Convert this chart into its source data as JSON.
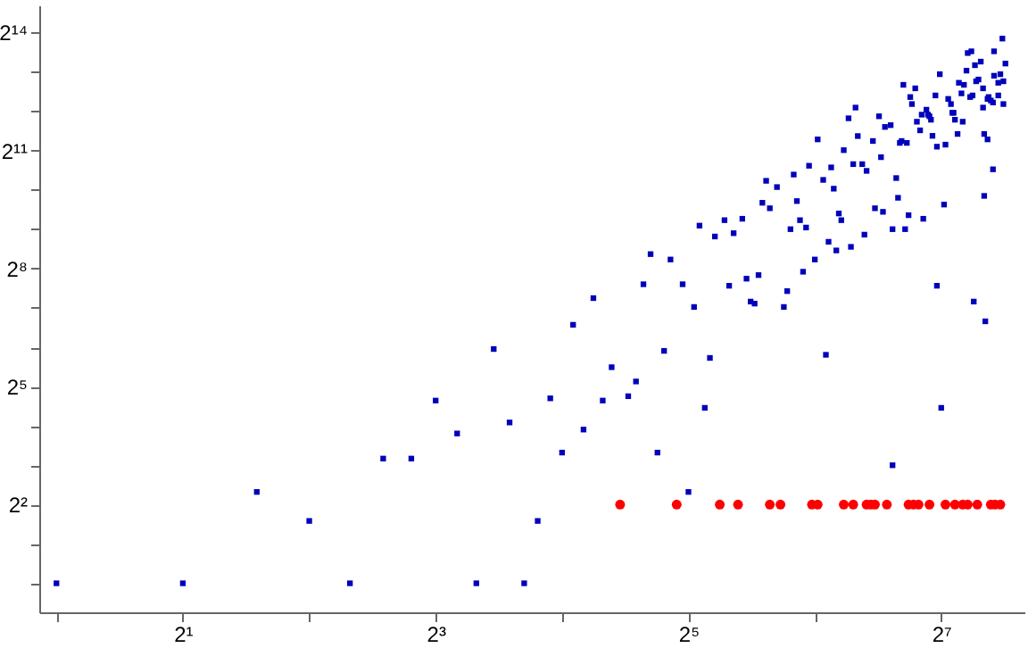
{
  "chart_data": {
    "type": "scatter",
    "log": "xy",
    "grid": false,
    "xlim": [
      0.91,
      202
    ],
    "ylim": [
      0.6,
      26400
    ],
    "xticks": [
      {
        "value": 1,
        "label": null
      },
      {
        "value": 2,
        "label": "2¹"
      },
      {
        "value": 4,
        "label": null
      },
      {
        "value": 8,
        "label": "2³"
      },
      {
        "value": 16,
        "label": null
      },
      {
        "value": 32,
        "label": "2⁵"
      },
      {
        "value": 64,
        "label": null
      },
      {
        "value": 128,
        "label": "2⁷"
      }
    ],
    "yticks": [
      {
        "value": 1,
        "label": null
      },
      {
        "value": 2,
        "label": null
      },
      {
        "value": 4,
        "label": "2²"
      },
      {
        "value": 8,
        "label": null
      },
      {
        "value": 16,
        "label": null
      },
      {
        "value": 32,
        "label": "2⁵"
      },
      {
        "value": 64,
        "label": null
      },
      {
        "value": 128,
        "label": null
      },
      {
        "value": 256,
        "label": "2⁸"
      },
      {
        "value": 512,
        "label": null
      },
      {
        "value": 1024,
        "label": null
      },
      {
        "value": 2048,
        "label": "2¹¹"
      },
      {
        "value": 4096,
        "label": null
      },
      {
        "value": 8192,
        "label": null
      },
      {
        "value": 16384,
        "label": "2¹⁴"
      }
    ],
    "series": [
      {
        "color": "#0000bb",
        "marker": "square",
        "x": [
          1,
          2,
          3,
          4,
          5,
          6,
          7,
          8,
          9,
          10,
          11,
          12,
          13,
          14,
          15,
          16,
          17,
          18,
          19,
          20,
          21,
          23,
          24,
          25,
          26,
          27,
          28,
          29,
          31,
          32,
          33,
          34,
          35,
          36,
          37,
          39,
          40,
          41,
          43,
          44,
          45,
          46,
          47,
          48,
          49,
          50,
          52,
          54,
          55,
          56,
          57,
          58,
          59,
          60,
          61,
          62,
          64,
          65,
          67,
          68,
          69,
          70,
          71,
          72,
          73,
          74,
          75,
          77,
          78,
          79,
          80,
          81,
          83,
          84,
          85,
          88,
          89,
          91,
          92,
          93,
          94,
          97,
          98,
          98,
          100,
          101,
          102,
          103,
          104,
          105,
          106,
          107,
          108,
          109,
          111,
          112,
          114,
          115,
          116,
          118,
          119,
          120,
          121,
          122,
          124,
          125,
          125,
          127,
          128,
          130,
          131,
          133,
          135,
          136,
          137,
          138,
          140,
          141,
          143,
          144,
          145,
          147,
          148,
          150,
          151,
          152,
          153,
          154,
          155,
          157,
          159,
          161,
          161,
          162,
          162,
          163,
          165,
          165,
          166,
          168,
          170,
          170,
          171,
          171,
          175,
          175,
          177,
          179,
          180,
          180,
          182
        ],
        "values": [
          1,
          1,
          5,
          3,
          1,
          9,
          9,
          25,
          14,
          1,
          62,
          17,
          1,
          3,
          26,
          10,
          95,
          15,
          152,
          25,
          45,
          27,
          35,
          194,
          330,
          10,
          60,
          300,
          194,
          5,
          130,
          545,
          22,
          53,
          450,
          600,
          189,
          477,
          615,
          214,
          143,
          138,
          228,
          815,
          1200,
          740,
          1075,
          130,
          172,
          512,
          1340,
          840,
          600,
          242,
          527,
          1565,
          300,
          2490,
          1220,
          56,
          410,
          1520,
          1045,
          352,
          675,
          600,
          2060,
          3610,
          375,
          1610,
          4360,
          2640,
          1610,
          465,
          1430,
          2420,
          740,
          3740,
          1820,
          695,
          3100,
          3200,
          512,
          8,
          1260,
          890,
          2340,
          2420,
          6510,
          512,
          2340,
          655,
          5250,
          4640,
          6120,
          3400,
          2920,
          3850,
          615,
          4200,
          3850,
          3740,
          3520,
          2650,
          5400,
          2190,
          189,
          7850,
          22,
          790,
          2270,
          5080,
          4640,
          3980,
          3980,
          3520,
          2740,
          6750,
          5600,
          3400,
          6510,
          8360,
          11400,
          5250,
          11750,
          5400,
          143,
          9200,
          6930,
          7150,
          9800,
          6120,
          4360,
          2740,
          920,
          101,
          2490,
          5080,
          5250,
          4940,
          4770,
          1470,
          7640,
          11750,
          6750,
          5400,
          7850,
          14700,
          6930,
          4640,
          9470
        ]
      },
      {
        "color": "#ff0000",
        "marker": "circle",
        "x": [
          22,
          30,
          38,
          42,
          50,
          53,
          63,
          65,
          75,
          79,
          85,
          87,
          89,
          95,
          107,
          110,
          113,
          120,
          131,
          138,
          144,
          148,
          156,
          168,
          172,
          177
        ],
        "values": [
          4,
          4,
          4,
          4,
          4,
          4,
          4,
          4,
          4,
          4,
          4,
          4,
          4,
          4,
          4,
          4,
          4,
          4,
          4,
          4,
          4,
          4,
          4,
          4,
          4,
          4
        ]
      }
    ]
  }
}
